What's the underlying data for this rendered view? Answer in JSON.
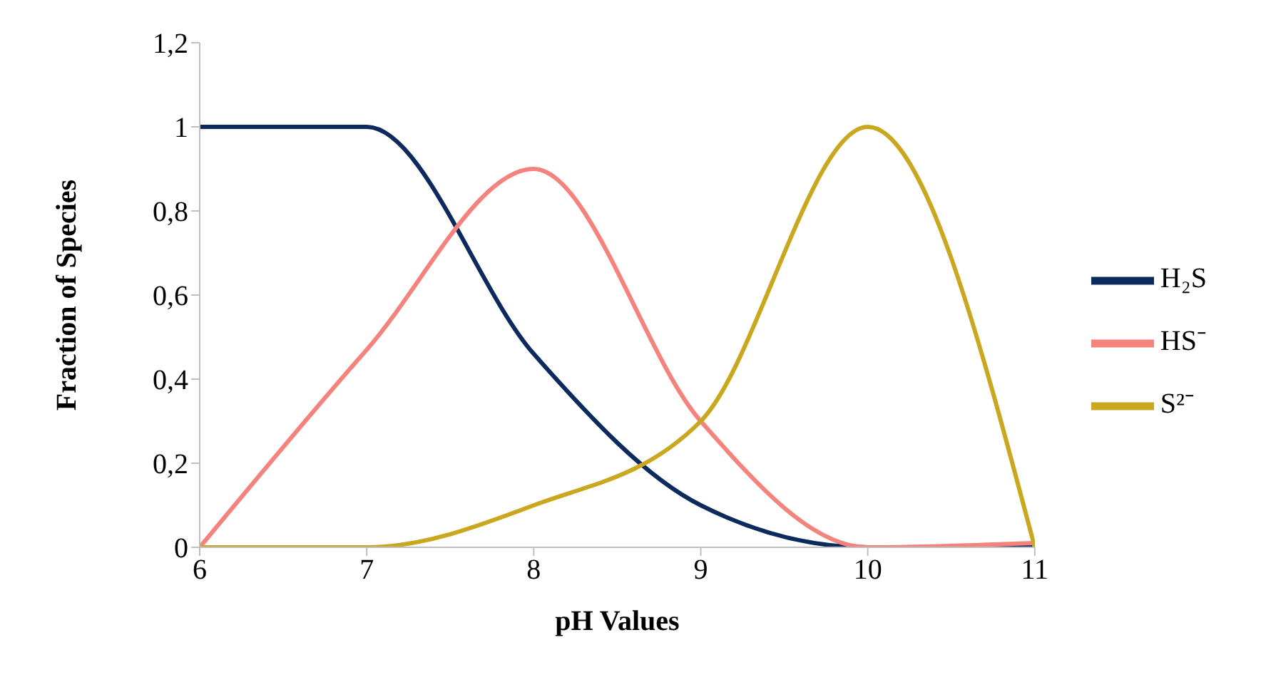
{
  "chart_data": {
    "type": "line",
    "xlabel": "pH Values",
    "ylabel": "Fraction of Species",
    "x": [
      6,
      7,
      8,
      9,
      10,
      11
    ],
    "series": [
      {
        "name": "H₂S",
        "color": "#0d2a5e",
        "values": [
          1,
          1,
          0.46,
          0.1,
          0,
          0
        ]
      },
      {
        "name": "HS⁻",
        "color": "#f4837d",
        "values": [
          0,
          0.47,
          0.9,
          0.3,
          0,
          0.01
        ]
      },
      {
        "name": "S²⁻",
        "color": "#c9a820",
        "values": [
          0,
          0,
          0.1,
          0.3,
          1,
          0
        ]
      }
    ],
    "xlim": [
      6,
      11
    ],
    "xticks": [
      6,
      7,
      8,
      9,
      10,
      11
    ],
    "ylim": [
      0,
      1.2
    ],
    "yticks": [
      0,
      {
        "value": 0.2,
        "label": "0,2"
      },
      {
        "value": 0.4,
        "label": "0,4"
      },
      {
        "value": 0.6,
        "label": "0,6"
      },
      {
        "value": 0.8,
        "label": "0,8"
      },
      1,
      {
        "value": 1.2,
        "label": "1,2"
      }
    ],
    "grid": false,
    "legend": "right",
    "marker": "none",
    "line_style": "solid"
  }
}
